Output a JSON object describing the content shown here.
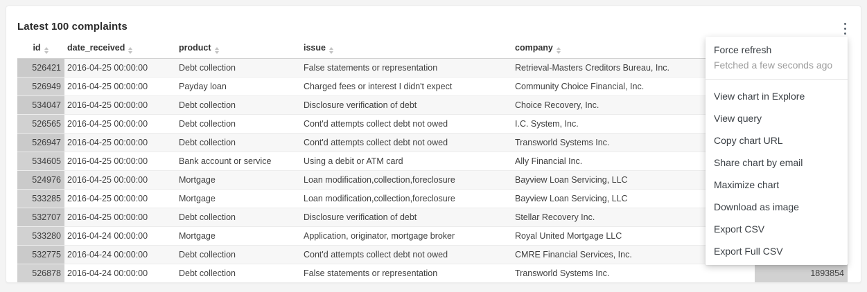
{
  "card": {
    "title": "Latest 100 complaints"
  },
  "table": {
    "columns": [
      {
        "label": "id"
      },
      {
        "label": "date_received"
      },
      {
        "label": "product"
      },
      {
        "label": "issue"
      },
      {
        "label": "company"
      }
    ],
    "rows": [
      {
        "id": "526421",
        "date_received": "2016-04-25 00:00:00",
        "product": "Debt collection",
        "issue": "False statements or representation",
        "company": "Retrieval-Masters Creditors Bureau, Inc."
      },
      {
        "id": "526949",
        "date_received": "2016-04-25 00:00:00",
        "product": "Payday loan",
        "issue": "Charged fees or interest I didn't expect",
        "company": "Community Choice Financial, Inc."
      },
      {
        "id": "534047",
        "date_received": "2016-04-25 00:00:00",
        "product": "Debt collection",
        "issue": "Disclosure verification of debt",
        "company": "Choice Recovery, Inc."
      },
      {
        "id": "526565",
        "date_received": "2016-04-25 00:00:00",
        "product": "Debt collection",
        "issue": "Cont'd attempts collect debt not owed",
        "company": "I.C. System, Inc."
      },
      {
        "id": "526947",
        "date_received": "2016-04-25 00:00:00",
        "product": "Debt collection",
        "issue": "Cont'd attempts collect debt not owed",
        "company": "Transworld Systems Inc."
      },
      {
        "id": "534605",
        "date_received": "2016-04-25 00:00:00",
        "product": "Bank account or service",
        "issue": "Using a debit or ATM card",
        "company": "Ally Financial Inc."
      },
      {
        "id": "524976",
        "date_received": "2016-04-25 00:00:00",
        "product": "Mortgage",
        "issue": "Loan modification,collection,foreclosure",
        "company": "Bayview Loan Servicing, LLC"
      },
      {
        "id": "533285",
        "date_received": "2016-04-25 00:00:00",
        "product": "Mortgage",
        "issue": "Loan modification,collection,foreclosure",
        "company": "Bayview Loan Servicing, LLC"
      },
      {
        "id": "532707",
        "date_received": "2016-04-25 00:00:00",
        "product": "Debt collection",
        "issue": "Disclosure verification of debt",
        "company": "Stellar Recovery Inc."
      },
      {
        "id": "533280",
        "date_received": "2016-04-24 00:00:00",
        "product": "Mortgage",
        "issue": "Application, originator, mortgage broker",
        "company": "Royal United Mortgage LLC"
      },
      {
        "id": "532775",
        "date_received": "2016-04-24 00:00:00",
        "product": "Debt collection",
        "issue": "Cont'd attempts collect debt not owed",
        "company": "CMRE Financial Services, Inc."
      },
      {
        "id": "526878",
        "date_received": "2016-04-24 00:00:00",
        "product": "Debt collection",
        "issue": "False statements or representation",
        "company": "Transworld Systems Inc.",
        "value": "1893854"
      }
    ]
  },
  "menu": {
    "force_refresh": "Force refresh",
    "fetched_status": "Fetched a few seconds ago",
    "items": [
      "View chart in Explore",
      "View query",
      "Copy chart URL",
      "Share chart by email",
      "Maximize chart",
      "Download as image",
      "Export CSV",
      "Export Full CSV"
    ]
  },
  "colors": {
    "page_bg": "#f4f4f4",
    "card_bg": "#ffffff",
    "stripe": "#f7f7f7",
    "bar": "#cccccc",
    "text": "#3f3f3f",
    "muted_text": "#9d9d9d"
  }
}
